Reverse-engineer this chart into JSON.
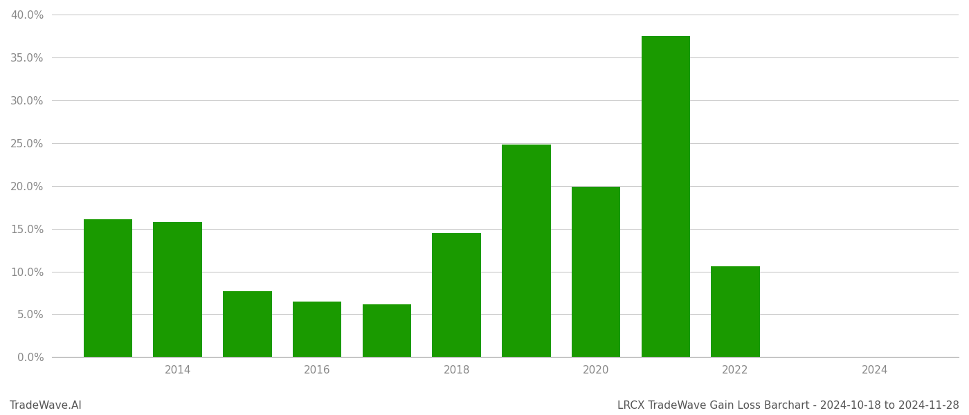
{
  "years": [
    2013,
    2014,
    2015,
    2016,
    2017,
    2018,
    2019,
    2020,
    2021,
    2022,
    2023
  ],
  "values": [
    0.161,
    0.158,
    0.077,
    0.065,
    0.062,
    0.145,
    0.248,
    0.199,
    0.375,
    0.106,
    0.0
  ],
  "bar_color": "#1a9a00",
  "background_color": "#ffffff",
  "tick_color": "#888888",
  "grid_color": "#cccccc",
  "title": "LRCX TradeWave Gain Loss Barchart - 2024-10-18 to 2024-11-28",
  "watermark": "TradeWave.AI",
  "ylim": [
    0,
    0.405
  ],
  "yticks": [
    0.0,
    0.05,
    0.1,
    0.15,
    0.2,
    0.25,
    0.3,
    0.35,
    0.4
  ],
  "xlim": [
    2012.2,
    2025.2
  ],
  "xticks": [
    2014,
    2016,
    2018,
    2020,
    2022,
    2024
  ],
  "xtick_labels": [
    "2014",
    "2016",
    "2018",
    "2020",
    "2022",
    "2024"
  ],
  "bar_width": 0.7,
  "title_fontsize": 11,
  "watermark_fontsize": 11,
  "tick_fontsize": 11
}
